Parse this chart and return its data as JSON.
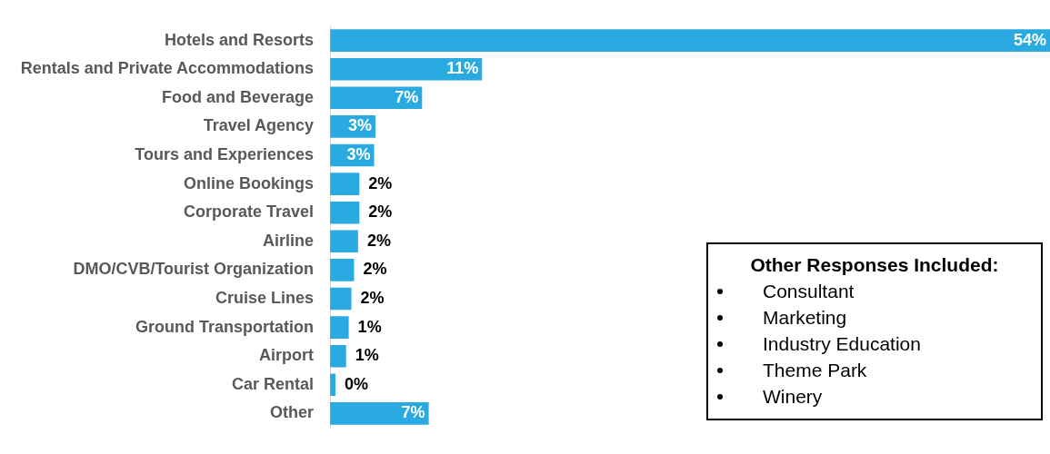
{
  "chart_data": {
    "type": "bar",
    "orientation": "horizontal",
    "categories": [
      "Hotels and Resorts",
      "Rentals and Private Accommodations",
      "Food and Beverage",
      "Travel Agency",
      "Tours and Experiences",
      "Online Bookings",
      "Corporate Travel",
      "Airline",
      "DMO/CVB/Tourist Organization",
      "Cruise Lines",
      "Ground Transportation",
      "Airport",
      "Car Rental",
      "Other"
    ],
    "values": [
      54,
      11.4,
      6.9,
      3.4,
      3.3,
      2.2,
      2.2,
      2.1,
      1.8,
      1.6,
      1.4,
      1.2,
      0.4,
      7.4
    ],
    "value_labels": [
      "54%",
      "11%",
      "7%",
      "3%",
      "3%",
      "2%",
      "2%",
      "2%",
      "2%",
      "2%",
      "1%",
      "1%",
      "0%",
      "7%"
    ],
    "color": "#29abe2",
    "xlim": [
      0,
      54
    ],
    "tick_labels": "y",
    "legend": false,
    "annotations": [
      "Other Responses Included:",
      "Consultant",
      "Marketing",
      "Industry Education",
      "Theme Park",
      "Winery"
    ]
  }
}
